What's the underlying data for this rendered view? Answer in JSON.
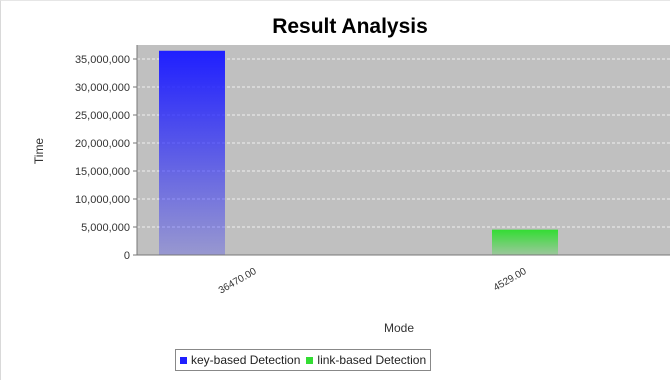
{
  "chart_data": {
    "type": "bar",
    "title": "Result Analysis",
    "xlabel": "Mode",
    "ylabel": "Time",
    "categories": [
      "36470.00",
      "4529.00"
    ],
    "series": [
      {
        "name": "key-based Detection",
        "values": [
          36470000,
          null
        ],
        "color": "#1f1fff"
      },
      {
        "name": "link-based Detection",
        "values": [
          null,
          4529000
        ],
        "color": "#33dd33"
      }
    ],
    "ylim": [
      0,
      37500000
    ],
    "yticks": [
      0,
      5000000,
      10000000,
      15000000,
      20000000,
      25000000,
      30000000,
      35000000
    ],
    "ytick_labels": [
      "0",
      "5,000,000",
      "10,000,000",
      "15,000,000",
      "20,000,000",
      "25,000,000",
      "30,000,000",
      "35,000,000"
    ],
    "grid": true,
    "legend_position": "bottom",
    "plot_background": "#c0c0c0"
  }
}
